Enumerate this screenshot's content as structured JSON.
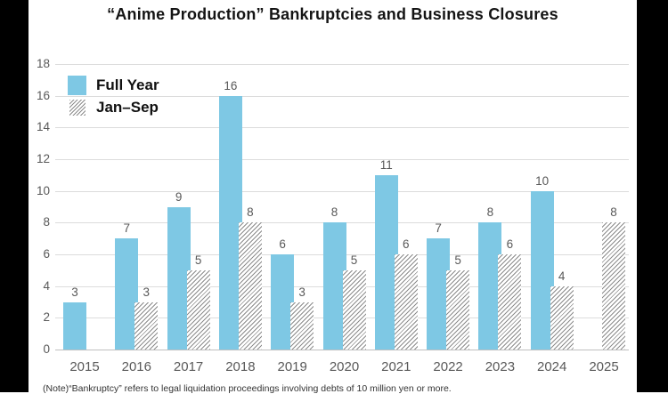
{
  "title": "“Anime Production” Bankruptcies and Business Closures",
  "note": "(Note)“Bankruptcy” refers to legal liquidation proceedings involving debts of 10 million yen or more.",
  "legend": {
    "items": [
      {
        "label": "Full Year",
        "swatch": "solid-blue"
      },
      {
        "label": "Jan–Sep",
        "swatch": "hatched-gray"
      }
    ]
  },
  "colors": {
    "bar_blue": "#7EC8E4",
    "hatch_line": "#8C8C8C",
    "grid": "#DCDCDC",
    "axis": "#BFBFBF",
    "tick_text": "#595959",
    "title_text": "#141414",
    "note_text": "#333333"
  },
  "chart_data": {
    "type": "bar",
    "title": "“Anime Production” Bankruptcies and Business Closures",
    "categories": [
      "2015",
      "2016",
      "2017",
      "2018",
      "2019",
      "2020",
      "2021",
      "2022",
      "2023",
      "2024",
      "2025"
    ],
    "series": [
      {
        "name": "Full Year",
        "style": "solid",
        "values": [
          3,
          7,
          9,
          16,
          6,
          8,
          11,
          7,
          8,
          10,
          null
        ]
      },
      {
        "name": "Jan–Sep",
        "style": "hatched",
        "values": [
          null,
          3,
          5,
          8,
          3,
          5,
          6,
          5,
          6,
          4,
          8
        ]
      }
    ],
    "xlabel": "",
    "ylabel": "",
    "ylim": [
      0,
      18
    ],
    "ytick_step": 2,
    "grid": true,
    "legend_position": "top-left",
    "value_labels": true
  }
}
